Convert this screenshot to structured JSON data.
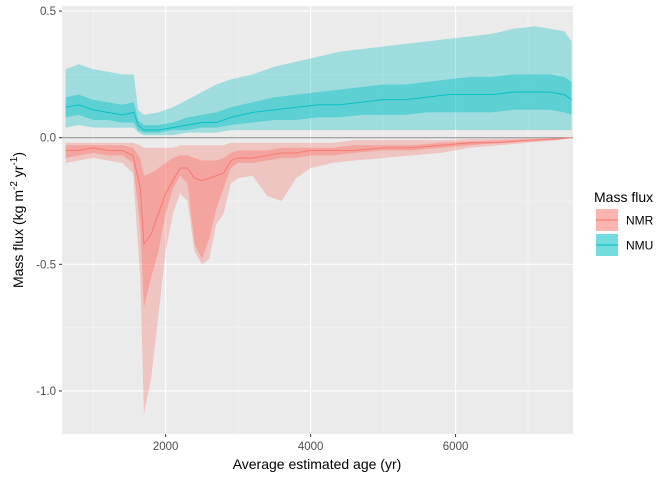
{
  "chart_data": {
    "type": "area",
    "xlabel": "Average estimated age (yr)",
    "ylabel_main": "Mass flux (kg m",
    "ylabel_sup1": "-2",
    "ylabel_mid": " yr",
    "ylabel_sup2": "-1",
    "ylabel_end": ")",
    "xlim": [
      570,
      7620
    ],
    "ylim": [
      -1.17,
      0.52
    ],
    "x_ticks": [
      2000,
      4000,
      6000
    ],
    "x_tick_labels": [
      "2000",
      "4000",
      "6000"
    ],
    "y_ticks": [
      0.5,
      0.0,
      -0.5,
      -1.0
    ],
    "y_tick_labels": [
      "0.5",
      "0.0",
      "-0.5",
      "-1.0"
    ],
    "reference_line_y": 0.0,
    "grid": true,
    "legend": {
      "title": "Mass flux",
      "position": "right",
      "entries": [
        {
          "label": "NMR",
          "color": "#F8766D"
        },
        {
          "label": "NMU",
          "color": "#00BFC4"
        }
      ]
    },
    "series": [
      {
        "name": "NMU",
        "color": "#00BFC4",
        "x": [
          620,
          800,
          1000,
          1200,
          1400,
          1560,
          1620,
          1700,
          1900,
          2100,
          2300,
          2500,
          2700,
          2900,
          3200,
          3500,
          3800,
          4100,
          4400,
          4700,
          5000,
          5300,
          5600,
          5900,
          6200,
          6500,
          6800,
          7100,
          7300,
          7500,
          7600
        ],
        "median": [
          0.12,
          0.13,
          0.11,
          0.1,
          0.09,
          0.1,
          0.05,
          0.03,
          0.03,
          0.04,
          0.05,
          0.06,
          0.06,
          0.08,
          0.1,
          0.11,
          0.12,
          0.13,
          0.13,
          0.14,
          0.15,
          0.15,
          0.16,
          0.17,
          0.17,
          0.17,
          0.18,
          0.18,
          0.18,
          0.17,
          0.15
        ],
        "inner_low": [
          0.08,
          0.09,
          0.07,
          0.07,
          0.06,
          0.06,
          0.03,
          0.02,
          0.02,
          0.03,
          0.03,
          0.04,
          0.04,
          0.05,
          0.06,
          0.07,
          0.07,
          0.08,
          0.08,
          0.09,
          0.09,
          0.09,
          0.1,
          0.1,
          0.1,
          0.1,
          0.11,
          0.11,
          0.11,
          0.1,
          0.09
        ],
        "inner_high": [
          0.16,
          0.17,
          0.15,
          0.14,
          0.13,
          0.14,
          0.07,
          0.05,
          0.05,
          0.06,
          0.08,
          0.09,
          0.1,
          0.12,
          0.14,
          0.16,
          0.17,
          0.18,
          0.19,
          0.2,
          0.21,
          0.21,
          0.22,
          0.23,
          0.24,
          0.24,
          0.25,
          0.25,
          0.25,
          0.24,
          0.22
        ],
        "outer_low": [
          0.04,
          0.05,
          0.04,
          0.04,
          0.04,
          0.04,
          0.02,
          0.01,
          0.01,
          0.01,
          0.02,
          0.02,
          0.02,
          0.03,
          0.03,
          0.03,
          0.03,
          0.03,
          0.03,
          0.03,
          0.03,
          0.03,
          0.03,
          0.03,
          0.03,
          0.03,
          0.03,
          0.03,
          0.03,
          0.03,
          0.03
        ],
        "outer_high": [
          0.27,
          0.29,
          0.27,
          0.26,
          0.25,
          0.25,
          0.11,
          0.09,
          0.1,
          0.12,
          0.15,
          0.18,
          0.21,
          0.23,
          0.25,
          0.28,
          0.3,
          0.32,
          0.34,
          0.35,
          0.36,
          0.37,
          0.38,
          0.39,
          0.4,
          0.41,
          0.43,
          0.44,
          0.43,
          0.42,
          0.38
        ]
      },
      {
        "name": "NMR",
        "color": "#F8766D",
        "x": [
          620,
          800,
          1000,
          1200,
          1400,
          1550,
          1650,
          1700,
          1800,
          1900,
          2000,
          2100,
          2200,
          2300,
          2400,
          2500,
          2600,
          2700,
          2800,
          2900,
          3000,
          3200,
          3400,
          3600,
          3800,
          4000,
          4300,
          4600,
          5000,
          5400,
          5800,
          6200,
          6600,
          7000,
          7400,
          7600
        ],
        "median": [
          -0.05,
          -0.05,
          -0.04,
          -0.05,
          -0.05,
          -0.07,
          -0.2,
          -0.42,
          -0.38,
          -0.3,
          -0.22,
          -0.17,
          -0.12,
          -0.12,
          -0.16,
          -0.17,
          -0.16,
          -0.15,
          -0.14,
          -0.09,
          -0.08,
          -0.08,
          -0.07,
          -0.06,
          -0.06,
          -0.05,
          -0.05,
          -0.05,
          -0.04,
          -0.04,
          -0.03,
          -0.02,
          -0.02,
          -0.01,
          -0.005,
          0.0
        ],
        "inner_low": [
          -0.08,
          -0.07,
          -0.06,
          -0.07,
          -0.07,
          -0.1,
          -0.35,
          -0.67,
          -0.55,
          -0.45,
          -0.3,
          -0.2,
          -0.15,
          -0.18,
          -0.42,
          -0.48,
          -0.4,
          -0.28,
          -0.2,
          -0.12,
          -0.1,
          -0.1,
          -0.09,
          -0.08,
          -0.08,
          -0.07,
          -0.07,
          -0.06,
          -0.05,
          -0.05,
          -0.04,
          -0.03,
          -0.02,
          -0.015,
          -0.007,
          0.0
        ],
        "inner_high": [
          -0.03,
          -0.03,
          -0.03,
          -0.03,
          -0.03,
          -0.04,
          -0.08,
          -0.15,
          -0.14,
          -0.12,
          -0.1,
          -0.08,
          -0.07,
          -0.07,
          -0.08,
          -0.09,
          -0.09,
          -0.09,
          -0.08,
          -0.06,
          -0.05,
          -0.05,
          -0.05,
          -0.04,
          -0.04,
          -0.04,
          -0.04,
          -0.03,
          -0.03,
          -0.03,
          -0.02,
          -0.015,
          -0.01,
          -0.007,
          -0.003,
          0.0
        ],
        "outer_low": [
          -0.1,
          -0.09,
          -0.08,
          -0.09,
          -0.1,
          -0.14,
          -0.55,
          -1.09,
          -0.95,
          -0.7,
          -0.45,
          -0.3,
          -0.22,
          -0.25,
          -0.45,
          -0.5,
          -0.48,
          -0.34,
          -0.3,
          -0.18,
          -0.16,
          -0.15,
          -0.23,
          -0.25,
          -0.16,
          -0.12,
          -0.1,
          -0.09,
          -0.08,
          -0.07,
          -0.06,
          -0.04,
          -0.03,
          -0.02,
          -0.01,
          0.0
        ],
        "outer_high": [
          -0.02,
          -0.02,
          -0.02,
          -0.02,
          -0.02,
          -0.02,
          -0.03,
          -0.04,
          -0.04,
          -0.04,
          -0.04,
          -0.04,
          -0.03,
          -0.03,
          -0.03,
          -0.03,
          -0.03,
          -0.03,
          -0.03,
          -0.02,
          -0.02,
          -0.02,
          -0.02,
          -0.02,
          -0.02,
          -0.02,
          -0.02,
          -0.01,
          -0.01,
          -0.01,
          -0.01,
          -0.005,
          -0.004,
          -0.003,
          -0.001,
          0.0
        ]
      }
    ]
  }
}
